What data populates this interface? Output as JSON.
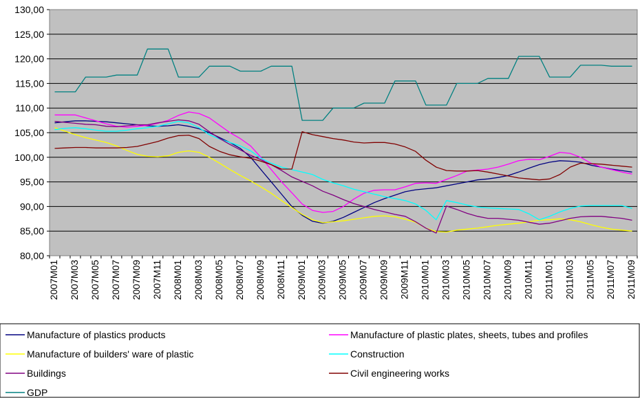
{
  "chart_data": {
    "type": "line",
    "title": "",
    "xlabel": "",
    "ylabel": "",
    "ylim": [
      80,
      130
    ],
    "ytick_step": 5,
    "grid": "horizontal",
    "plot_background": "#c0c0c0",
    "legend_position": "bottom",
    "ytick_labels": [
      "80,00",
      "85,00",
      "90,00",
      "95,00",
      "100,00",
      "105,00",
      "110,00",
      "115,00",
      "120,00",
      "125,00",
      "130,00"
    ],
    "x": [
      "2007M01",
      "2007M02",
      "2007M03",
      "2007M04",
      "2007M05",
      "2007M06",
      "2007M07",
      "2007M08",
      "2007M09",
      "2007M10",
      "2007M11",
      "2007M12",
      "2008M01",
      "2008M02",
      "2008M03",
      "2008M04",
      "2008M05",
      "2008M06",
      "2008M07",
      "2008M08",
      "2008M09",
      "2008M10",
      "2008M11",
      "2008M12",
      "2009M01",
      "2009M02",
      "2009M03",
      "2009M04",
      "2009M05",
      "2009M06",
      "2009M07",
      "2009M08",
      "2009M09",
      "2009M10",
      "2009M11",
      "2009M12",
      "2010M01",
      "2010M02",
      "2010M03",
      "2010M04",
      "2010M05",
      "2010M06",
      "2010M07",
      "2010M08",
      "2010M09",
      "2010M10",
      "2010M11",
      "2010M12",
      "2011M01",
      "2011M02",
      "2011M03",
      "2011M04",
      "2011M05",
      "2011M06",
      "2011M07",
      "2011M08",
      "2011M09"
    ],
    "x_tick_labels": [
      "2007M01",
      "2007M03",
      "2007M05",
      "2007M07",
      "2007M09",
      "2007M11",
      "2008M01",
      "2008M03",
      "2008M05",
      "2008M07",
      "2008M09",
      "2008M11",
      "2009M01",
      "2009M03",
      "2009M05",
      "2009M07",
      "2009M09",
      "2009M11",
      "2010M01",
      "2010M03",
      "2010M05",
      "2010M07",
      "2010M09",
      "2010M11",
      "2011M01",
      "2011M03",
      "2011M05",
      "2011M07",
      "2011M09"
    ],
    "series": [
      {
        "name": "Manufacture of plastics products",
        "color": "#000080",
        "values": [
          107.0,
          107.2,
          107.4,
          107.4,
          107.3,
          107.2,
          107.0,
          106.8,
          106.6,
          106.4,
          106.3,
          106.4,
          106.6,
          106.3,
          105.8,
          105.0,
          104.0,
          103.0,
          101.8,
          100.0,
          97.5,
          95.0,
          92.5,
          90.0,
          88.2,
          87.0,
          86.6,
          87.0,
          87.8,
          88.8,
          89.8,
          90.8,
          91.6,
          92.3,
          93.0,
          93.4,
          93.6,
          93.8,
          94.2,
          94.6,
          95.0,
          95.4,
          95.6,
          95.9,
          96.3,
          97.0,
          97.8,
          98.5,
          99.0,
          99.3,
          99.2,
          99.0,
          98.4,
          98.0,
          97.6,
          97.3,
          97.0
        ]
      },
      {
        "name": "Manufacture of plastic plates, sheets, tubes and profiles",
        "color": "#ff00ff",
        "values": [
          108.6,
          108.6,
          108.6,
          108.0,
          107.4,
          106.8,
          106.3,
          106.1,
          106.3,
          106.5,
          106.9,
          107.5,
          108.5,
          109.2,
          108.9,
          108.0,
          106.5,
          105.0,
          103.8,
          102.3,
          100.0,
          97.5,
          95.0,
          92.8,
          90.5,
          89.2,
          88.8,
          89.0,
          90.0,
          91.5,
          92.7,
          93.3,
          93.4,
          93.4,
          94.0,
          94.7,
          94.8,
          94.7,
          95.5,
          96.3,
          97.2,
          97.4,
          97.6,
          98.0,
          98.6,
          99.3,
          99.6,
          99.5,
          100.2,
          101.0,
          100.8,
          100.0,
          98.8,
          98.0,
          97.5,
          97.0,
          96.6
        ]
      },
      {
        "name": "Manufacture of builders' ware of plastic",
        "color": "#ffff00",
        "values": [
          106.0,
          105.3,
          104.6,
          104.0,
          103.5,
          103.0,
          102.3,
          101.4,
          100.6,
          100.2,
          100.1,
          100.3,
          101.0,
          101.3,
          101.0,
          100.0,
          98.8,
          97.5,
          96.3,
          95.2,
          94.0,
          92.7,
          91.2,
          89.8,
          88.4,
          87.3,
          86.7,
          86.9,
          87.1,
          87.4,
          87.7,
          88.0,
          88.1,
          87.9,
          87.4,
          86.8,
          85.6,
          84.9,
          84.8,
          85.2,
          85.4,
          85.6,
          85.9,
          86.2,
          86.4,
          86.6,
          86.9,
          87.2,
          87.3,
          87.5,
          87.3,
          86.9,
          86.3,
          85.8,
          85.4,
          85.2,
          85.0
        ]
      },
      {
        "name": "Construction",
        "color": "#00ffff",
        "values": [
          105.6,
          105.9,
          106.0,
          105.8,
          105.5,
          105.3,
          105.3,
          105.5,
          105.8,
          106.0,
          106.3,
          106.8,
          107.3,
          107.0,
          106.0,
          104.6,
          103.7,
          103.0,
          102.3,
          101.3,
          99.8,
          98.8,
          98.0,
          97.5,
          97.0,
          96.5,
          95.5,
          94.8,
          94.2,
          93.5,
          93.0,
          92.5,
          92.0,
          91.6,
          91.2,
          90.5,
          89.2,
          87.3,
          91.2,
          90.8,
          90.3,
          89.9,
          89.7,
          89.6,
          89.5,
          89.4,
          88.5,
          87.3,
          88.0,
          88.9,
          89.6,
          90.1,
          90.2,
          90.2,
          90.2,
          90.2,
          89.6
        ]
      },
      {
        "name": "Buildings",
        "color": "#800080",
        "values": [
          107.3,
          107.1,
          106.9,
          106.7,
          106.6,
          106.3,
          106.2,
          106.4,
          106.6,
          106.6,
          107.0,
          107.3,
          107.6,
          107.4,
          106.7,
          105.2,
          103.8,
          102.6,
          101.5,
          100.4,
          99.5,
          98.5,
          97.3,
          96.0,
          95.1,
          94.2,
          93.1,
          92.3,
          91.4,
          90.6,
          90.0,
          89.4,
          88.9,
          88.4,
          88.0,
          86.9,
          85.6,
          84.6,
          90.1,
          89.4,
          88.6,
          88.0,
          87.6,
          87.6,
          87.4,
          87.2,
          86.8,
          86.4,
          86.6,
          87.1,
          87.6,
          87.9,
          88.0,
          88.0,
          87.8,
          87.6,
          87.2
        ]
      },
      {
        "name": "Civil engineering works",
        "color": "#800000",
        "values": [
          101.8,
          101.9,
          102.0,
          102.0,
          101.9,
          101.9,
          101.9,
          102.0,
          102.2,
          102.7,
          103.2,
          103.9,
          104.4,
          104.5,
          103.8,
          102.2,
          101.2,
          100.5,
          100.1,
          99.8,
          99.2,
          98.5,
          97.6,
          97.6,
          105.2,
          104.6,
          104.2,
          103.8,
          103.5,
          103.1,
          102.9,
          103.0,
          103.0,
          102.7,
          102.1,
          101.2,
          99.4,
          98.0,
          97.3,
          97.2,
          97.2,
          97.3,
          97.0,
          96.6,
          96.2,
          95.8,
          95.6,
          95.4,
          95.6,
          96.5,
          98.0,
          98.8,
          98.7,
          98.6,
          98.4,
          98.2,
          98.0
        ]
      },
      {
        "name": "GDP",
        "color": "#008080",
        "values": [
          113.3,
          113.3,
          113.3,
          116.3,
          116.3,
          116.3,
          116.7,
          116.7,
          116.7,
          122.0,
          122.0,
          122.0,
          116.3,
          116.3,
          116.3,
          118.5,
          118.5,
          118.5,
          117.5,
          117.5,
          117.5,
          118.5,
          118.5,
          118.5,
          107.5,
          107.5,
          107.5,
          110.0,
          110.0,
          110.0,
          111.0,
          111.0,
          111.0,
          115.5,
          115.5,
          115.5,
          110.6,
          110.6,
          110.6,
          115.0,
          115.0,
          115.0,
          116.0,
          116.0,
          116.0,
          120.5,
          120.5,
          120.5,
          116.3,
          116.3,
          116.3,
          118.7,
          118.7,
          118.7,
          118.5,
          118.5,
          118.5
        ]
      }
    ]
  }
}
